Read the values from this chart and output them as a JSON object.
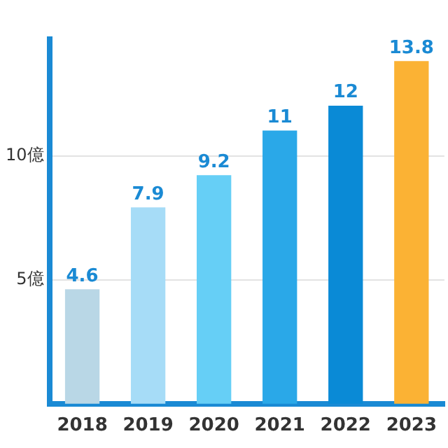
{
  "chart_data": {
    "type": "bar",
    "categories": [
      "2018",
      "2019",
      "2020",
      "2021",
      "2022",
      "2023"
    ],
    "values": [
      4.6,
      7.9,
      9.2,
      11,
      12,
      13.8
    ],
    "colors": [
      "#b9d7e6",
      "#a6dcf7",
      "#66cff6",
      "#2aa8e8",
      "#0a8ad6",
      "#fbb234"
    ],
    "ylim": [
      0,
      14.7
    ],
    "yticks": [
      {
        "value": 5,
        "label": "5億"
      },
      {
        "value": 10,
        "label": "10億"
      }
    ],
    "grid": "y",
    "data_labels": true,
    "legend": false
  }
}
